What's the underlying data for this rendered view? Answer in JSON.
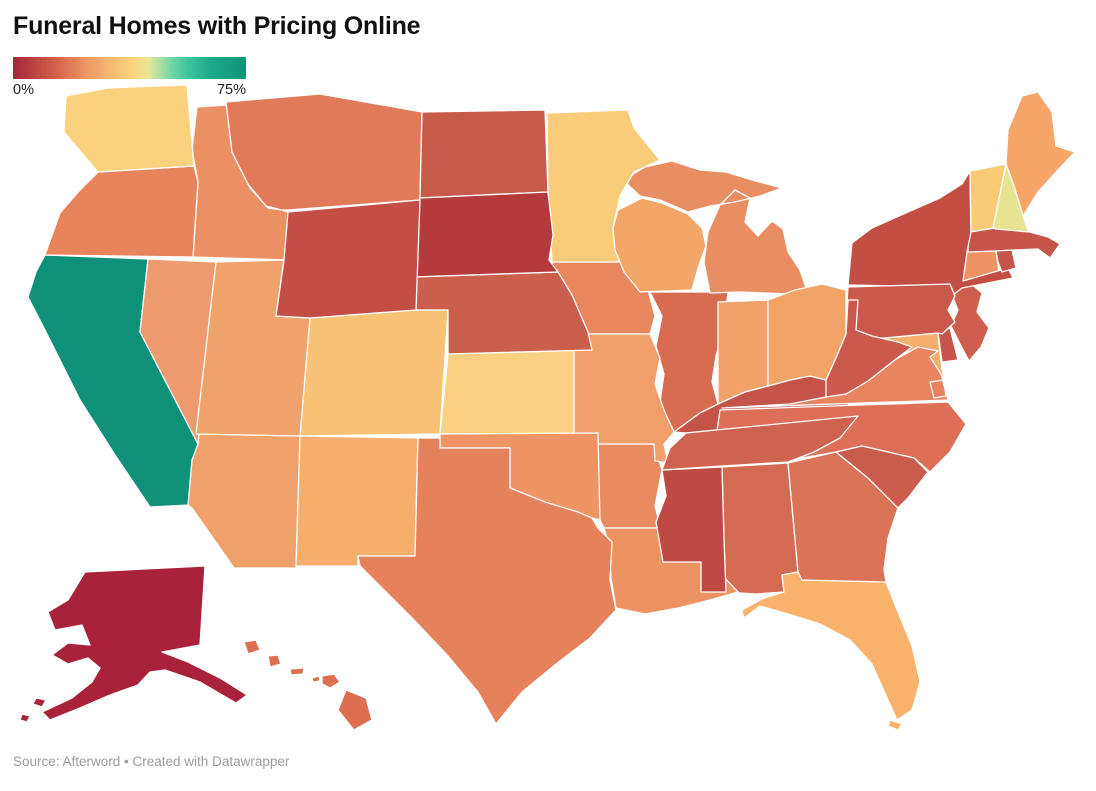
{
  "footer": {
    "text": "Source: Afterword • Created with Datawrapper"
  },
  "chart_data": {
    "type": "choropleth",
    "title": "Funeral Homes with Pricing Online",
    "unit": "%",
    "background_color": "#FFFFFF",
    "state_border_color": "#FFFFFF",
    "scale": {
      "min_label": "0%",
      "max_label": "75%",
      "gradient": [
        {
          "offset": 0,
          "color": "#A32638"
        },
        {
          "offset": 8,
          "color": "#BA4040"
        },
        {
          "offset": 20,
          "color": "#D5684F"
        },
        {
          "offset": 32,
          "color": "#EC9A65"
        },
        {
          "offset": 45,
          "color": "#F9C475"
        },
        {
          "offset": 52,
          "color": "#FAD57F"
        },
        {
          "offset": 58,
          "color": "#E8E695"
        },
        {
          "offset": 63,
          "color": "#AEE0A4"
        },
        {
          "offset": 68,
          "color": "#72D5A9"
        },
        {
          "offset": 75,
          "color": "#3DC49D"
        },
        {
          "offset": 85,
          "color": "#1BAA88"
        },
        {
          "offset": 100,
          "color": "#0E9377"
        }
      ]
    },
    "states": [
      {
        "abbr": "AK",
        "name": "Alaska",
        "color": "#A82339"
      },
      {
        "abbr": "AL",
        "name": "Alabama",
        "color": "#D56A52"
      },
      {
        "abbr": "AR",
        "name": "Arkansas",
        "color": "#E98A60"
      },
      {
        "abbr": "AZ",
        "name": "Arizona",
        "color": "#EFA06B"
      },
      {
        "abbr": "CA",
        "name": "California",
        "color": "#0F9179"
      },
      {
        "abbr": "CO",
        "name": "Colorado",
        "color": "#F8C275"
      },
      {
        "abbr": "CT",
        "name": "Connecticut",
        "color": "#ED9366"
      },
      {
        "abbr": "DC",
        "name": "District of Columbia",
        "color": "#C5544A"
      },
      {
        "abbr": "DE",
        "name": "Delaware",
        "color": "#C5544B"
      },
      {
        "abbr": "FL",
        "name": "Florida",
        "color": "#F8B26C"
      },
      {
        "abbr": "GA",
        "name": "Georgia",
        "color": "#DB7356"
      },
      {
        "abbr": "HI",
        "name": "Hawaii",
        "color": "#DD6E50"
      },
      {
        "abbr": "IA",
        "name": "Iowa",
        "color": "#E8875E"
      },
      {
        "abbr": "ID",
        "name": "Idaho",
        "color": "#EB9063"
      },
      {
        "abbr": "IL",
        "name": "Illinois",
        "color": "#D86C51"
      },
      {
        "abbr": "IN",
        "name": "Indiana",
        "color": "#F2A269"
      },
      {
        "abbr": "KS",
        "name": "Kansas",
        "color": "#FBD083"
      },
      {
        "abbr": "KY",
        "name": "Kentucky",
        "color": "#C4544A"
      },
      {
        "abbr": "LA",
        "name": "Louisiana",
        "color": "#EC9263"
      },
      {
        "abbr": "MA",
        "name": "Massachusetts",
        "color": "#C5544A"
      },
      {
        "abbr": "MD",
        "name": "Maryland",
        "color": "#F6AE6C"
      },
      {
        "abbr": "ME",
        "name": "Maine",
        "color": "#F5A668"
      },
      {
        "abbr": "MI",
        "name": "Michigan",
        "color": "#E88E62"
      },
      {
        "abbr": "MN",
        "name": "Minnesota",
        "color": "#FACB79"
      },
      {
        "abbr": "MO",
        "name": "Missouri",
        "color": "#F09E6A"
      },
      {
        "abbr": "MS",
        "name": "Mississippi",
        "color": "#BE4A44"
      },
      {
        "abbr": "MT",
        "name": "Montana",
        "color": "#E07A58"
      },
      {
        "abbr": "NC",
        "name": "North Carolina",
        "color": "#DC6F55"
      },
      {
        "abbr": "ND",
        "name": "North Dakota",
        "color": "#C65A4B"
      },
      {
        "abbr": "NE",
        "name": "Nebraska",
        "color": "#CB5F4D"
      },
      {
        "abbr": "NH",
        "name": "New Hampshire",
        "color": "#E8E293"
      },
      {
        "abbr": "NJ",
        "name": "New Jersey",
        "color": "#CE5F4E"
      },
      {
        "abbr": "NM",
        "name": "New Mexico",
        "color": "#F5AE6C"
      },
      {
        "abbr": "NV",
        "name": "Nevada",
        "color": "#EC9A6E"
      },
      {
        "abbr": "NY",
        "name": "New York",
        "color": "#C34F44"
      },
      {
        "abbr": "OH",
        "name": "Ohio",
        "color": "#F2A368"
      },
      {
        "abbr": "OK",
        "name": "Oklahoma",
        "color": "#EE9465"
      },
      {
        "abbr": "OR",
        "name": "Oregon",
        "color": "#E8845C"
      },
      {
        "abbr": "PA",
        "name": "Pennsylvania",
        "color": "#C95A4B"
      },
      {
        "abbr": "RI",
        "name": "Rhode Island",
        "color": "#C5544A"
      },
      {
        "abbr": "SC",
        "name": "South Carolina",
        "color": "#C95C4D"
      },
      {
        "abbr": "SD",
        "name": "South Dakota",
        "color": "#B43A3C"
      },
      {
        "abbr": "TN",
        "name": "Tennessee",
        "color": "#CE6350"
      },
      {
        "abbr": "TX",
        "name": "Texas",
        "color": "#E5825C"
      },
      {
        "abbr": "UT",
        "name": "Utah",
        "color": "#F0A26C"
      },
      {
        "abbr": "VA",
        "name": "Virginia",
        "color": "#E88560"
      },
      {
        "abbr": "VT",
        "name": "Vermont",
        "color": "#FACB77"
      },
      {
        "abbr": "WA",
        "name": "Washington",
        "color": "#FBD17D"
      },
      {
        "abbr": "WI",
        "name": "Wisconsin",
        "color": "#F2A668"
      },
      {
        "abbr": "WV",
        "name": "West Virginia",
        "color": "#CB5A4C"
      },
      {
        "abbr": "WY",
        "name": "Wyoming",
        "color": "#C24E46"
      }
    ]
  }
}
